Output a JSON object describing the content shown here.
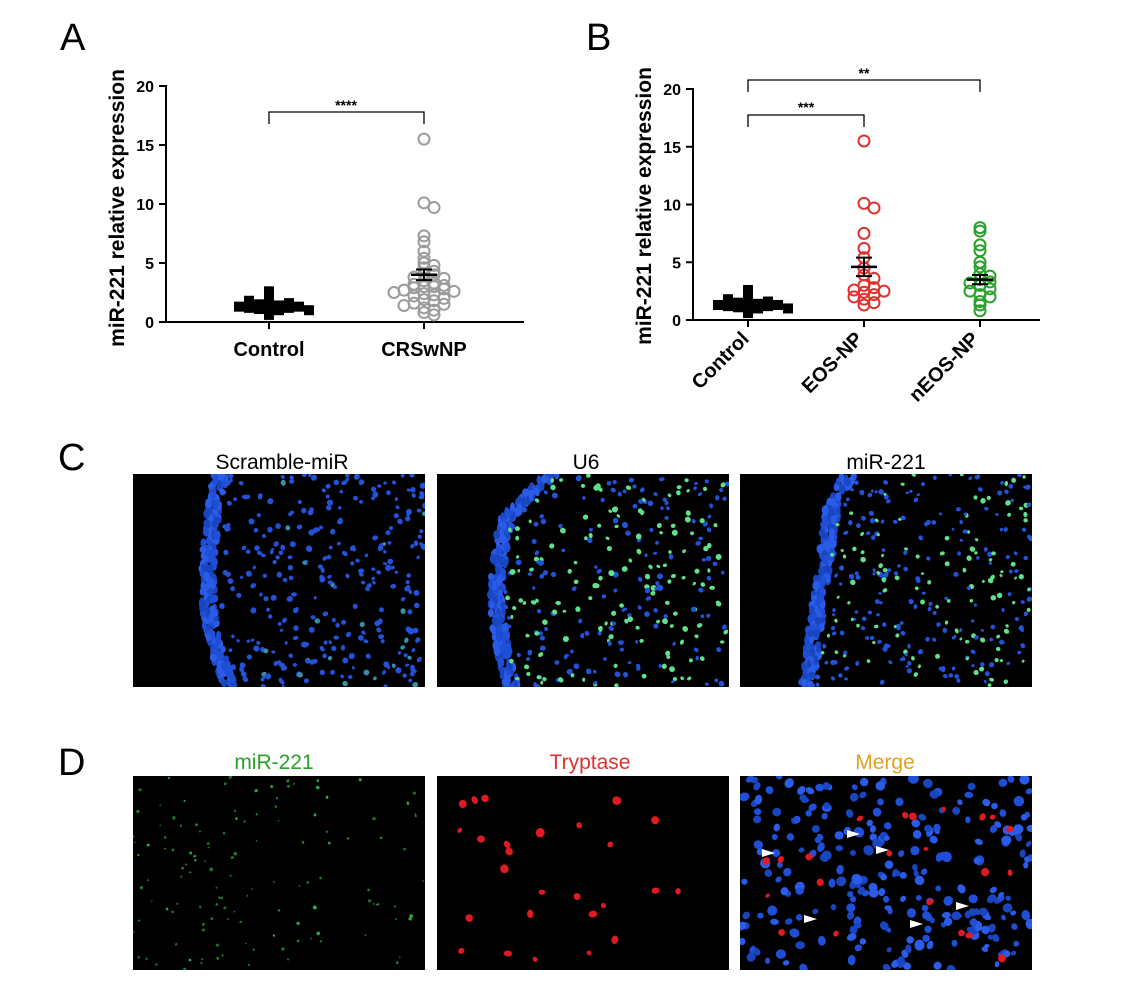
{
  "panels": {
    "A": "A",
    "B": "B",
    "C": "C",
    "D": "D"
  },
  "chart_data": [
    {
      "type": "scatter",
      "panel": "A",
      "ylabel": "miR-221 relative expression",
      "ylim": [
        0,
        20
      ],
      "yticks": [
        0,
        5,
        10,
        15,
        20
      ],
      "categories": [
        "Control",
        "CRSwNP"
      ],
      "series": [
        {
          "color": "#000000",
          "marker": "filled-square",
          "values": [
            0.9,
            1.0,
            1.1,
            1.2,
            1.2,
            1.3,
            1.3,
            1.4,
            1.4,
            1.5,
            1.6,
            1.8,
            2.0,
            2.6,
            0.6,
            1.0
          ],
          "mean": 1.3,
          "sem": 0.15
        },
        {
          "color": "#9b9b9b",
          "marker": "open-circle",
          "values": [
            15.5,
            10.1,
            9.7,
            7.3,
            6.8,
            6.0,
            5.4,
            5.0,
            4.8,
            4.6,
            4.3,
            4.1,
            4.0,
            3.8,
            3.7,
            3.5,
            3.3,
            3.2,
            3.1,
            3.0,
            3.0,
            2.9,
            2.8,
            2.7,
            2.6,
            2.5,
            2.4,
            2.3,
            2.2,
            2.0,
            1.9,
            1.8,
            1.6,
            1.5,
            1.4,
            1.2,
            1.0,
            0.8,
            0.6
          ],
          "mean": 4.0,
          "sem": 0.45
        }
      ],
      "significance": [
        {
          "from": 0,
          "to": 1,
          "label": "****"
        }
      ]
    },
    {
      "type": "scatter",
      "panel": "B",
      "ylabel": "miR-221 relative expression",
      "ylim": [
        0,
        20
      ],
      "yticks": [
        0,
        5,
        10,
        15,
        20
      ],
      "categories": [
        "Control",
        "EOS-NP",
        "nEOS-NP"
      ],
      "series": [
        {
          "color": "#000000",
          "marker": "filled-square",
          "values": [
            0.9,
            1.0,
            1.1,
            1.2,
            1.2,
            1.3,
            1.3,
            1.4,
            1.4,
            1.5,
            1.6,
            1.8,
            2.0,
            2.6,
            0.6,
            1.0
          ],
          "mean": 1.3,
          "sem": 0.15
        },
        {
          "color": "#e0312f",
          "marker": "open-circle",
          "values": [
            15.5,
            10.1,
            9.7,
            7.5,
            6.2,
            5.4,
            4.5,
            3.9,
            3.6,
            3.0,
            2.8,
            2.6,
            2.5,
            2.4,
            2.2,
            2.0,
            1.8,
            1.5,
            1.3
          ],
          "mean": 4.6,
          "sem": 0.8
        },
        {
          "color": "#2aa12a",
          "marker": "open-circle",
          "values": [
            8.0,
            7.7,
            6.5,
            6.0,
            5.0,
            4.6,
            4.0,
            3.8,
            3.5,
            3.3,
            3.2,
            3.0,
            2.7,
            2.5,
            2.2,
            2.0,
            1.6,
            1.3,
            0.8
          ],
          "mean": 3.5,
          "sem": 0.4
        }
      ],
      "significance": [
        {
          "from": 0,
          "to": 2,
          "label": "**"
        },
        {
          "from": 0,
          "to": 1,
          "label": "***"
        }
      ]
    }
  ],
  "micrographs": {
    "C": [
      {
        "title": "Scramble-miR",
        "title_color": "#000000"
      },
      {
        "title": "U6",
        "title_color": "#000000"
      },
      {
        "title": "miR-221",
        "title_color": "#000000"
      }
    ],
    "D": [
      {
        "title": "miR-221",
        "title_color": "#2aa12a"
      },
      {
        "title": "Tryptase",
        "title_color": "#e0312f"
      },
      {
        "title": "Merge",
        "title_color": "#e6a020"
      }
    ]
  }
}
